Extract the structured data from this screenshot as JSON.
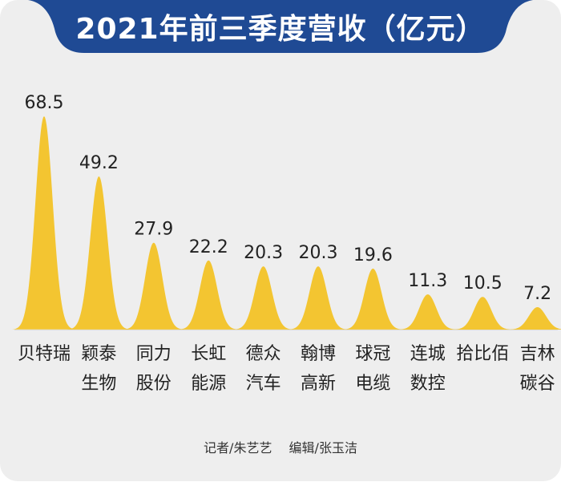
{
  "title": "2021年前三季度营收（亿元）",
  "credits": {
    "reporter": "记者/朱艺艺",
    "editor": "编辑/张玉洁"
  },
  "colors": {
    "banner": "#1f4a94",
    "bell": "#f3c531",
    "background": "#eeeeee",
    "text": "#222222"
  },
  "chart_data": {
    "type": "bar",
    "title": "2021年前三季度营收（亿元）",
    "xlabel": "",
    "ylabel": "",
    "ylim": [
      0,
      68.5
    ],
    "grid": false,
    "categories": [
      [
        "贝特瑞"
      ],
      [
        "颖泰",
        "生物"
      ],
      [
        "同力",
        "股份"
      ],
      [
        "长虹",
        "能源"
      ],
      [
        "德众",
        "汽车"
      ],
      [
        "翰博",
        "高新"
      ],
      [
        "球冠",
        "电缆"
      ],
      [
        "连城",
        "数控"
      ],
      [
        "拾比佰"
      ],
      [
        "吉林",
        "碳谷"
      ]
    ],
    "values": [
      68.5,
      49.2,
      27.9,
      22.2,
      20.3,
      20.3,
      19.6,
      11.3,
      10.5,
      7.2
    ],
    "value_labels": [
      "68.5",
      "49.2",
      "27.9",
      "22.2",
      "20.3",
      "20.3",
      "19.6",
      "11.3",
      "10.5",
      "7.2"
    ]
  }
}
